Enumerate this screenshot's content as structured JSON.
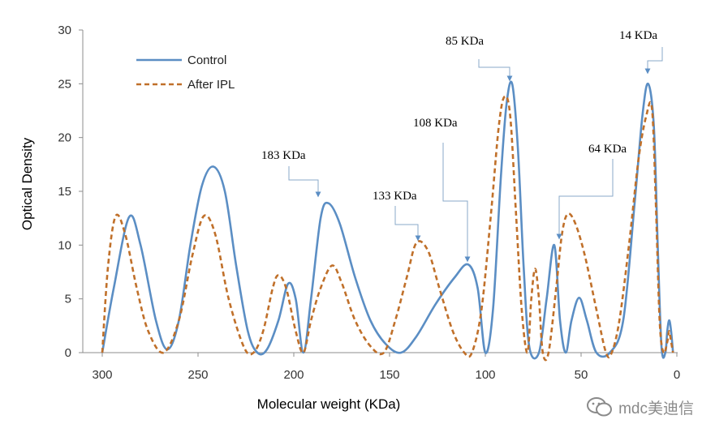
{
  "chart_data": {
    "type": "line",
    "title": "",
    "xlabel": "Molecular weight (KDa)",
    "ylabel": "Optical Density",
    "xlim": [
      300,
      0
    ],
    "ylim": [
      0,
      30
    ],
    "x_ticks": [
      300,
      250,
      200,
      150,
      100,
      50,
      0
    ],
    "y_ticks": [
      0,
      5,
      10,
      15,
      20,
      25,
      30
    ],
    "grid": false,
    "legend_position": "top-left",
    "series": [
      {
        "name": "Control",
        "color": "#5b8ec4",
        "style": "solid",
        "points": [
          [
            300,
            0
          ],
          [
            294,
            6
          ],
          [
            286,
            12.6
          ],
          [
            280,
            10
          ],
          [
            272,
            3
          ],
          [
            266,
            0.3
          ],
          [
            260,
            3
          ],
          [
            254,
            10
          ],
          [
            248,
            15.5
          ],
          [
            242,
            17.3
          ],
          [
            236,
            15
          ],
          [
            230,
            8
          ],
          [
            224,
            2
          ],
          [
            219,
            0
          ],
          [
            214,
            0.3
          ],
          [
            208,
            3
          ],
          [
            203,
            6.4
          ],
          [
            199,
            5
          ],
          [
            195,
            0
          ],
          [
            191,
            5
          ],
          [
            186,
            12.5
          ],
          [
            182,
            13.9
          ],
          [
            176,
            12
          ],
          [
            168,
            7
          ],
          [
            160,
            3
          ],
          [
            152,
            0.8
          ],
          [
            144,
            0
          ],
          [
            136,
            1.5
          ],
          [
            126,
            4.5
          ],
          [
            116,
            7
          ],
          [
            109,
            8.2
          ],
          [
            104,
            6
          ],
          [
            100,
            0
          ],
          [
            96,
            4
          ],
          [
            92,
            16
          ],
          [
            89,
            23
          ],
          [
            86,
            25
          ],
          [
            83,
            19
          ],
          [
            80,
            8
          ],
          [
            77,
            0.5
          ],
          [
            72,
            0
          ],
          [
            68,
            5
          ],
          [
            64,
            10
          ],
          [
            61,
            3
          ],
          [
            58,
            0
          ],
          [
            55,
            3
          ],
          [
            51,
            5.1
          ],
          [
            47,
            3
          ],
          [
            42,
            0
          ],
          [
            35,
            0
          ],
          [
            28,
            3
          ],
          [
            22,
            14
          ],
          [
            18,
            22
          ],
          [
            15,
            25
          ],
          [
            12,
            21
          ],
          [
            10,
            10
          ],
          [
            8,
            0.5
          ],
          [
            6,
            0
          ],
          [
            5,
            2
          ],
          [
            4,
            3
          ],
          [
            3,
            2
          ],
          [
            2,
            0
          ]
        ]
      },
      {
        "name": "After IPL",
        "color": "#c0702a",
        "style": "dashed",
        "points": [
          [
            300,
            0
          ],
          [
            297,
            8
          ],
          [
            293,
            12.7
          ],
          [
            288,
            11
          ],
          [
            282,
            6
          ],
          [
            276,
            2
          ],
          [
            268,
            0
          ],
          [
            260,
            3
          ],
          [
            253,
            9
          ],
          [
            247,
            12.7
          ],
          [
            241,
            11
          ],
          [
            234,
            5
          ],
          [
            226,
            0.5
          ],
          [
            221,
            0
          ],
          [
            216,
            2
          ],
          [
            211,
            6
          ],
          [
            208,
            7.2
          ],
          [
            204,
            6
          ],
          [
            199,
            2
          ],
          [
            195,
            0
          ],
          [
            191,
            3
          ],
          [
            186,
            6
          ],
          [
            180,
            8.1
          ],
          [
            175,
            6.5
          ],
          [
            168,
            3
          ],
          [
            160,
            0.6
          ],
          [
            153,
            0
          ],
          [
            147,
            3
          ],
          [
            141,
            7
          ],
          [
            136,
            10.2
          ],
          [
            130,
            9.5
          ],
          [
            124,
            6
          ],
          [
            117,
            2
          ],
          [
            111,
            0
          ],
          [
            107,
            0
          ],
          [
            102,
            4
          ],
          [
            97,
            13
          ],
          [
            93,
            21
          ],
          [
            90,
            23.8
          ],
          [
            87,
            22
          ],
          [
            84,
            13
          ],
          [
            81,
            4
          ],
          [
            78,
            0
          ],
          [
            76,
            5
          ],
          [
            74,
            7.8
          ],
          [
            72,
            5
          ],
          [
            70,
            0
          ],
          [
            67,
            0
          ],
          [
            63,
            6
          ],
          [
            60,
            11
          ],
          [
            57,
            12.9
          ],
          [
            53,
            12
          ],
          [
            48,
            9
          ],
          [
            42,
            4
          ],
          [
            37,
            0
          ],
          [
            34,
            0
          ],
          [
            30,
            3
          ],
          [
            25,
            10
          ],
          [
            20,
            18
          ],
          [
            16,
            22
          ],
          [
            13,
            22.7
          ],
          [
            11,
            14
          ],
          [
            9,
            3
          ],
          [
            7,
            0
          ],
          [
            5,
            1
          ],
          [
            4,
            2
          ],
          [
            3,
            1
          ],
          [
            2,
            0
          ]
        ]
      }
    ],
    "annotations": [
      {
        "label": "183 KDa",
        "x": 188,
        "y": 14
      },
      {
        "label": "133 KDa",
        "x": 137,
        "y": 10.3
      },
      {
        "label": "108 KDa",
        "x": 110,
        "y": 8.2
      },
      {
        "label": "85 KDa",
        "x": 87,
        "y": 25
      },
      {
        "label": "64 KDa",
        "x": 64,
        "y": 10
      },
      {
        "label": "14 KDa",
        "x": 15,
        "y": 25
      }
    ]
  },
  "watermark": {
    "text": "mdc美迪信",
    "icon": "wechat-icon"
  }
}
